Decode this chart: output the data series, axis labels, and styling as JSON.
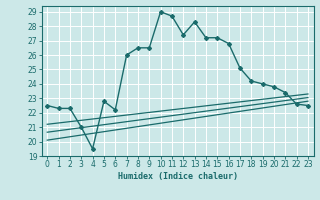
{
  "title": "",
  "xlabel": "Humidex (Indice chaleur)",
  "bg_color": "#cce8e8",
  "grid_color": "#ffffff",
  "line_color": "#1a6b6b",
  "xlim": [
    -0.5,
    23.5
  ],
  "ylim": [
    19,
    29.4
  ],
  "xticks": [
    0,
    1,
    2,
    3,
    4,
    5,
    6,
    7,
    8,
    9,
    10,
    11,
    12,
    13,
    14,
    15,
    16,
    17,
    18,
    19,
    20,
    21,
    22,
    23
  ],
  "yticks": [
    19,
    20,
    21,
    22,
    23,
    24,
    25,
    26,
    27,
    28,
    29
  ],
  "curve1_x": [
    0,
    1,
    2,
    3,
    4,
    5,
    6,
    7,
    8,
    9,
    10,
    11,
    12,
    13,
    14,
    15,
    16,
    17,
    18,
    19,
    20,
    21,
    22,
    23
  ],
  "curve1_y": [
    22.5,
    22.3,
    22.3,
    21.0,
    19.5,
    22.8,
    22.2,
    26.0,
    26.5,
    26.5,
    29.0,
    28.7,
    27.4,
    28.3,
    27.2,
    27.2,
    26.8,
    25.1,
    24.2,
    24.0,
    23.8,
    23.4,
    22.6,
    22.5
  ],
  "line1_x": [
    0,
    23
  ],
  "line1_y": [
    21.2,
    23.3
  ],
  "line2_x": [
    0,
    23
  ],
  "line2_y": [
    20.1,
    22.8
  ],
  "line3_x": [
    0,
    23
  ],
  "line3_y": [
    20.65,
    23.05
  ],
  "xlabel_fontsize": 6,
  "tick_fontsize": 5.5,
  "linewidth": 1.0,
  "marker_size": 2.0
}
